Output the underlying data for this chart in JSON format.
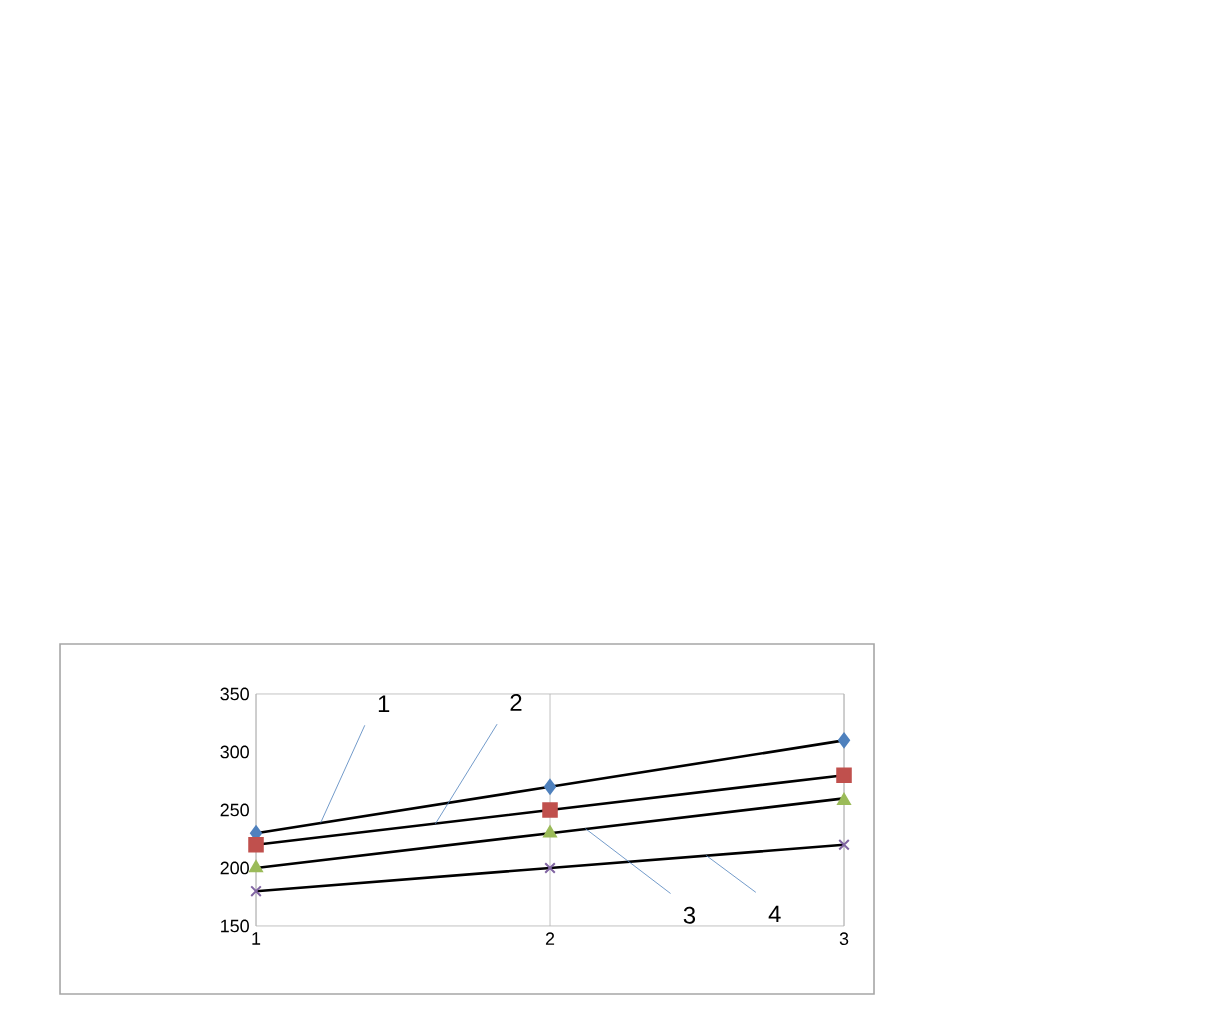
{
  "chart_data": {
    "type": "scatter",
    "x": [
      1,
      2,
      3
    ],
    "xlim": [
      1,
      3
    ],
    "xticks": [
      1,
      2,
      3
    ],
    "ylim": [
      150,
      350
    ],
    "yticks": [
      150,
      200,
      250,
      300,
      350
    ],
    "grid": "x",
    "series": [
      {
        "color": "#4f81bd",
        "marker": "diamond",
        "values": [
          230,
          270,
          310
        ]
      },
      {
        "color": "#c0504d",
        "marker": "square",
        "values": [
          220,
          250,
          280
        ]
      },
      {
        "color": "#9bbb59",
        "marker": "triangle",
        "values": [
          200,
          230,
          258
        ]
      },
      {
        "color": "#8064a2",
        "marker": "cross",
        "values": [
          180,
          200,
          220
        ]
      },
      {
        "type": "line",
        "color": "#000000",
        "marker": "none",
        "values": [
          230,
          270,
          310
        ]
      },
      {
        "type": "line",
        "color": "#000000",
        "marker": "none",
        "values": [
          220,
          250,
          280
        ]
      },
      {
        "type": "line",
        "color": "#000000",
        "marker": "none",
        "values": [
          200,
          230,
          260
        ]
      },
      {
        "type": "line",
        "color": "#000000",
        "marker": "none",
        "values": [
          180,
          200,
          220
        ]
      }
    ],
    "annotations": [
      {
        "text": "1",
        "x": 1.22,
        "y": 239
      },
      {
        "text": "2",
        "x": 1.61,
        "y": 238
      },
      {
        "text": "3",
        "x": 2.12,
        "y": 234
      },
      {
        "text": "4",
        "x": 2.53,
        "y": 211
      }
    ]
  }
}
